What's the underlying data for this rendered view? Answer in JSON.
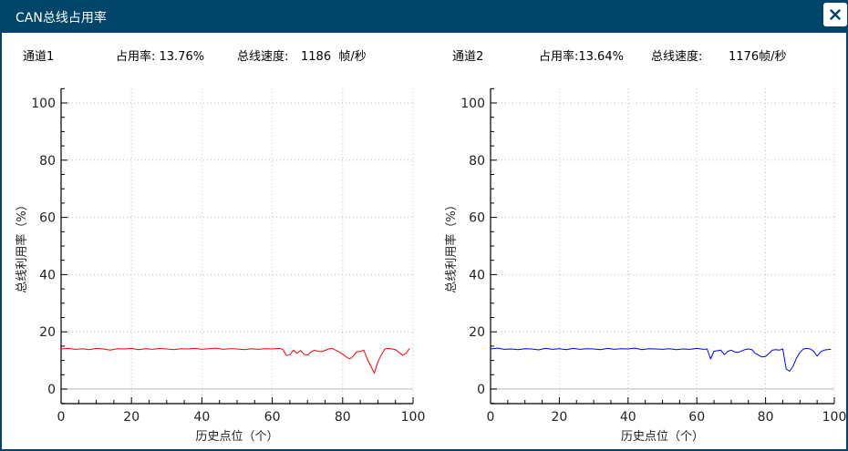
{
  "window": {
    "title": "CAN总线占用率",
    "close_label": "×"
  },
  "channels": [
    {
      "name": "通道1",
      "usage_label": "占用率: 13.76%",
      "speed_label": "总线速度:",
      "speed_value": "1186  帧/秒",
      "line_color": "#ff0000"
    },
    {
      "name": "通道2",
      "usage_label": "占用率:13.64%",
      "speed_label": "总线速度:",
      "speed_value": "1176帧/秒",
      "line_color": "#0000ff"
    }
  ],
  "chart_data": [
    {
      "type": "line",
      "title": "通道1",
      "xlabel": "历史点位（个）",
      "ylabel": "总线利用率（%）",
      "xlim": [
        0,
        100
      ],
      "ylim": [
        -5,
        105
      ],
      "xticks": [
        0,
        20,
        40,
        60,
        80,
        100
      ],
      "yticks": [
        0,
        20,
        40,
        60,
        80,
        100
      ],
      "grid": true,
      "series": [
        {
          "name": "通道1",
          "color": "#ff0000",
          "x": [
            0,
            2,
            4,
            6,
            8,
            10,
            12,
            14,
            16,
            18,
            20,
            22,
            24,
            26,
            28,
            30,
            32,
            34,
            36,
            38,
            40,
            42,
            44,
            46,
            48,
            50,
            52,
            54,
            56,
            58,
            60,
            62,
            63,
            64,
            65,
            66,
            67,
            68,
            69,
            70,
            71,
            72,
            73,
            74,
            75,
            76,
            77,
            78,
            79,
            80,
            81,
            82,
            83,
            84,
            85,
            86,
            87,
            88,
            89,
            90,
            91,
            92,
            93,
            94,
            95,
            96,
            97,
            98,
            99
          ],
          "values": [
            14.0,
            14.2,
            13.9,
            14.1,
            13.8,
            14.2,
            14.0,
            13.6,
            14.1,
            14.0,
            14.2,
            13.8,
            14.1,
            13.9,
            14.2,
            14.0,
            13.8,
            14.1,
            14.0,
            14.2,
            13.9,
            14.1,
            14.3,
            13.9,
            14.1,
            14.0,
            13.8,
            14.1,
            13.9,
            14.1,
            14.0,
            14.2,
            13.9,
            11.7,
            12.0,
            13.6,
            12.5,
            13.5,
            12.2,
            11.8,
            13.0,
            13.6,
            13.2,
            13.1,
            13.5,
            14.0,
            14.2,
            13.6,
            13.0,
            12.2,
            11.2,
            10.5,
            11.5,
            13.0,
            13.2,
            13.6,
            10.5,
            8.0,
            5.5,
            9.5,
            12.0,
            14.0,
            14.2,
            14.0,
            13.8,
            12.8,
            11.8,
            12.5,
            14.2
          ]
        }
      ]
    },
    {
      "type": "line",
      "title": "通道2",
      "xlabel": "历史点位（个）",
      "ylabel": "总线利用率（%）",
      "xlim": [
        0,
        100
      ],
      "ylim": [
        -5,
        105
      ],
      "xticks": [
        0,
        20,
        40,
        60,
        80,
        100
      ],
      "yticks": [
        0,
        20,
        40,
        60,
        80,
        100
      ],
      "grid": true,
      "series": [
        {
          "name": "通道2",
          "color": "#0000ff",
          "x": [
            0,
            2,
            4,
            6,
            8,
            10,
            12,
            14,
            16,
            18,
            20,
            22,
            24,
            26,
            28,
            30,
            32,
            34,
            36,
            38,
            40,
            42,
            44,
            46,
            48,
            50,
            52,
            54,
            56,
            58,
            60,
            62,
            63,
            64,
            65,
            66,
            67,
            68,
            69,
            70,
            71,
            72,
            73,
            74,
            75,
            76,
            77,
            78,
            79,
            80,
            81,
            82,
            83,
            84,
            85,
            86,
            87,
            88,
            89,
            90,
            91,
            92,
            93,
            94,
            95,
            96,
            97,
            98,
            99
          ],
          "values": [
            14.0,
            14.3,
            13.9,
            14.0,
            13.8,
            14.1,
            14.0,
            13.7,
            14.2,
            13.9,
            14.1,
            13.8,
            14.2,
            13.9,
            14.1,
            14.0,
            13.8,
            14.2,
            13.9,
            14.1,
            14.0,
            14.3,
            13.8,
            14.1,
            14.0,
            13.9,
            14.1,
            13.8,
            14.0,
            13.9,
            14.2,
            13.9,
            14.0,
            10.5,
            13.2,
            13.4,
            13.6,
            12.0,
            13.2,
            13.6,
            13.0,
            12.8,
            13.3,
            13.8,
            14.0,
            13.8,
            12.5,
            11.8,
            11.2,
            11.4,
            12.5,
            13.6,
            13.8,
            13.6,
            14.0,
            7.0,
            6.2,
            8.0,
            10.8,
            12.8,
            14.0,
            14.2,
            14.0,
            13.2,
            11.5,
            13.0,
            13.6,
            13.8,
            13.9
          ]
        }
      ]
    }
  ]
}
